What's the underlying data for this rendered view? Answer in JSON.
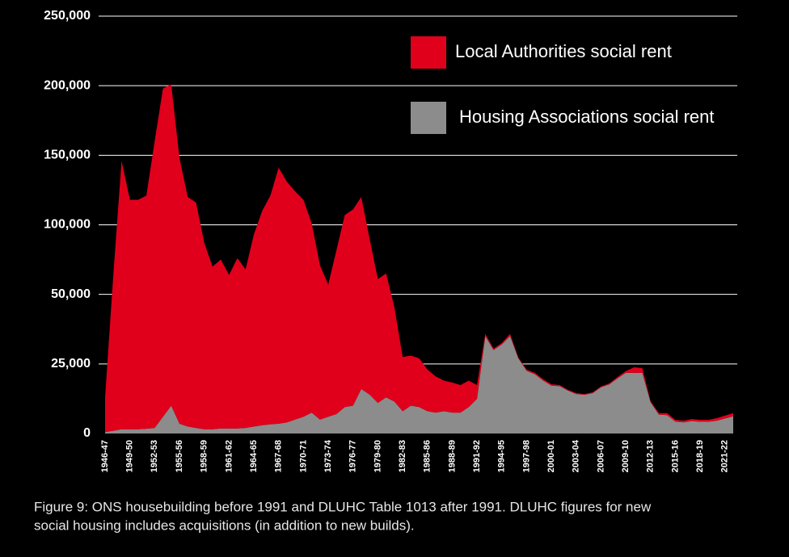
{
  "chart_data": {
    "type": "stacked_area",
    "caption": [
      "Figure 9: ONS housebuilding before 1991 and DLUHC Table 1013 after 1991. DLUHC figures for new",
      "social housing includes acquisitions (in addition to new builds)."
    ],
    "categories": [
      "1946-47",
      null,
      null,
      "1949-50",
      null,
      null,
      "1952-53",
      null,
      null,
      "1955-56",
      null,
      null,
      "1958-59",
      null,
      null,
      "1961-62",
      null,
      null,
      "1964-65",
      null,
      null,
      "1967-68",
      null,
      null,
      "1970-71",
      null,
      null,
      "1973-74",
      null,
      null,
      "1976-77",
      null,
      null,
      "1979-80",
      null,
      null,
      "1982-83",
      null,
      null,
      "1985-86",
      null,
      null,
      "1988-89",
      null,
      null,
      "1991-92",
      null,
      null,
      "1994-95",
      null,
      null,
      "1997-98",
      null,
      null,
      "2000-01",
      null,
      null,
      "2003-04",
      null,
      null,
      "2006-07",
      null,
      null,
      "2009-10",
      null,
      null,
      "2012-13",
      null,
      null,
      "2015-16",
      null,
      null,
      "2018-19",
      null,
      null,
      "2021-22",
      null
    ],
    "series": [
      {
        "name": "Local Authorities social rent",
        "color": "#e0001b",
        "values": [
          12500,
          63000,
          144500,
          116500,
          116500,
          119300,
          158000,
          192000,
          191000,
          144500,
          117500,
          114000,
          85500,
          68500,
          73200,
          62200,
          74200,
          66000,
          90500,
          107000,
          117700,
          137500,
          127000,
          119000,
          112000,
          93500,
          66000,
          51000,
          75000,
          97500,
          101000,
          104000,
          76000,
          50000,
          52000,
          34000,
          19500,
          18000,
          17500,
          15000,
          13000,
          11000,
          10800,
          9900,
          9500,
          4900,
          800,
          500,
          500,
          800,
          300,
          500,
          500,
          500,
          500,
          400,
          300,
          300,
          300,
          300,
          300,
          400,
          500,
          600,
          2000,
          1700,
          400,
          500,
          700,
          600,
          600,
          700,
          700,
          700,
          900,
          1000,
          1100
        ]
      },
      {
        "name": "Housing Associations social rent",
        "color": "#8c8c8c",
        "values": [
          500,
          1000,
          1500,
          1500,
          1500,
          1700,
          2000,
          6000,
          10000,
          3500,
          2500,
          2000,
          1500,
          1500,
          1800,
          1800,
          1800,
          2000,
          2500,
          3000,
          3300,
          3500,
          4000,
          5000,
          6000,
          7500,
          5000,
          6000,
          7000,
          9500,
          10000,
          16000,
          14000,
          11000,
          13000,
          11500,
          8000,
          10000,
          9500,
          8000,
          7500,
          8000,
          7500,
          7500,
          9500,
          12500,
          35000,
          30000,
          32000,
          35000,
          27000,
          22500,
          21300,
          19000,
          17200,
          17000,
          15400,
          14200,
          13900,
          14500,
          16600,
          17600,
          19800,
          21800,
          21800,
          21800,
          11200,
          6800,
          6600,
          4300,
          4000,
          4500,
          4200,
          4200,
          4600,
          5400,
          6200
        ]
      }
    ],
    "ylim": [
      0,
      250000
    ],
    "yticks": [
      0,
      {
        "value": 25000,
        "label": "25,000"
      },
      {
        "value": 50000,
        "label": "50,000"
      },
      {
        "value": 100000,
        "label": "100,000"
      },
      {
        "value": 150000,
        "label": "150,000"
      },
      {
        "value": 200000,
        "label": "200,000"
      },
      {
        "value": 250000,
        "label": "250,000"
      }
    ],
    "grid": true,
    "legend": "top-right"
  }
}
